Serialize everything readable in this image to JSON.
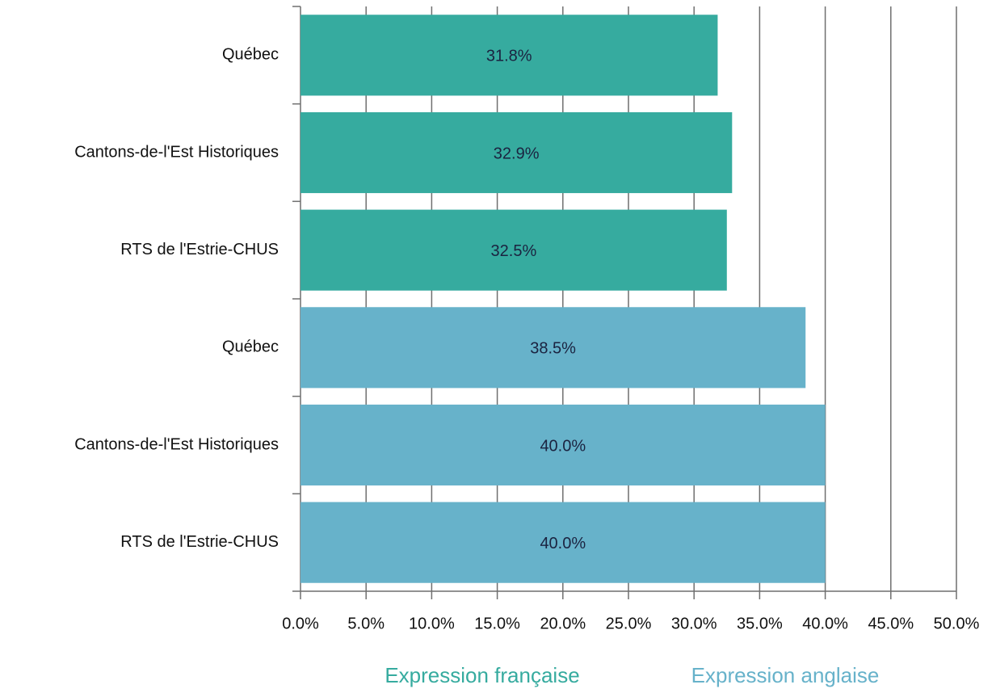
{
  "chart_data": {
    "type": "bar",
    "orientation": "horizontal",
    "categories": [
      "Québec",
      "Cantons-de-l'Est Historiques",
      "RTS de l'Estrie-CHUS",
      "Québec",
      "Cantons-de-l'Est Historiques",
      "RTS de l'Estrie-CHUS"
    ],
    "series": [
      {
        "name": "Expression française",
        "color": "#36ab9f",
        "values": [
          31.8,
          32.9,
          32.5,
          null,
          null,
          null
        ],
        "value_labels": [
          "31.8%",
          "32.9%",
          "32.5%",
          null,
          null,
          null
        ]
      },
      {
        "name": "Expression anglaise",
        "color": "#67b2ca",
        "values": [
          null,
          null,
          null,
          38.5,
          40.0,
          40.0
        ],
        "value_labels": [
          null,
          null,
          null,
          "38.5%",
          "40.0%",
          "40.0%"
        ]
      }
    ],
    "xlim": [
      0,
      50
    ],
    "xticks": [
      {
        "value": 0,
        "label": "0.0%"
      },
      {
        "value": 5,
        "label": "5.0%"
      },
      {
        "value": 10,
        "label": "10.0%"
      },
      {
        "value": 15,
        "label": "15.0%"
      },
      {
        "value": 20,
        "label": "20.0%"
      },
      {
        "value": 25,
        "label": "25.0%"
      },
      {
        "value": 30,
        "label": "30.0%"
      },
      {
        "value": 35,
        "label": "35.0%"
      },
      {
        "value": 40,
        "label": "40.0%"
      },
      {
        "value": 45,
        "label": "45.0%"
      },
      {
        "value": 50,
        "label": "50.0%"
      }
    ],
    "grid": true,
    "legend": "bottom"
  }
}
